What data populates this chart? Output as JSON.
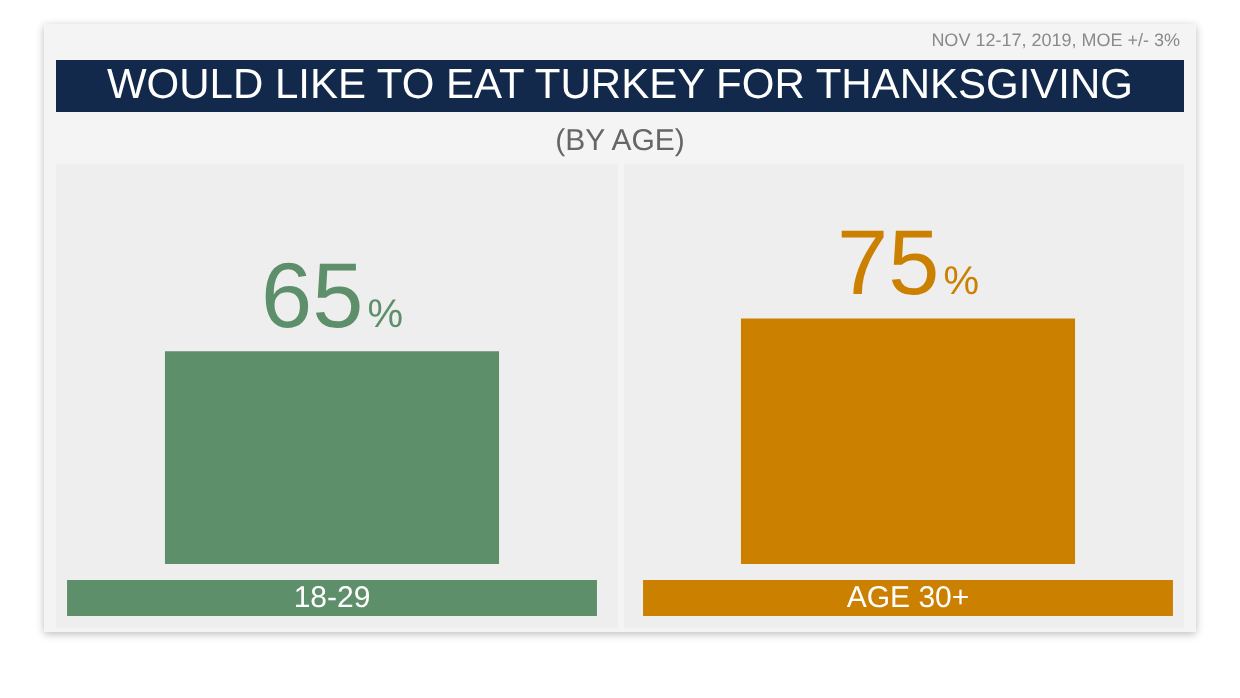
{
  "chart_data": {
    "type": "bar",
    "title": "WOULD LIKE TO EAT TURKEY FOR THANKSGIVING",
    "subtitle": "(BY AGE)",
    "categories": [
      "18-29",
      "AGE 30+"
    ],
    "values": [
      65,
      75
    ],
    "colors": [
      "#5e8f6b",
      "#cc8000"
    ],
    "value_labels": [
      "65%",
      "75%"
    ],
    "annotations": [
      "NOV 12-17, 2019, MOE +/- 3%"
    ]
  }
}
